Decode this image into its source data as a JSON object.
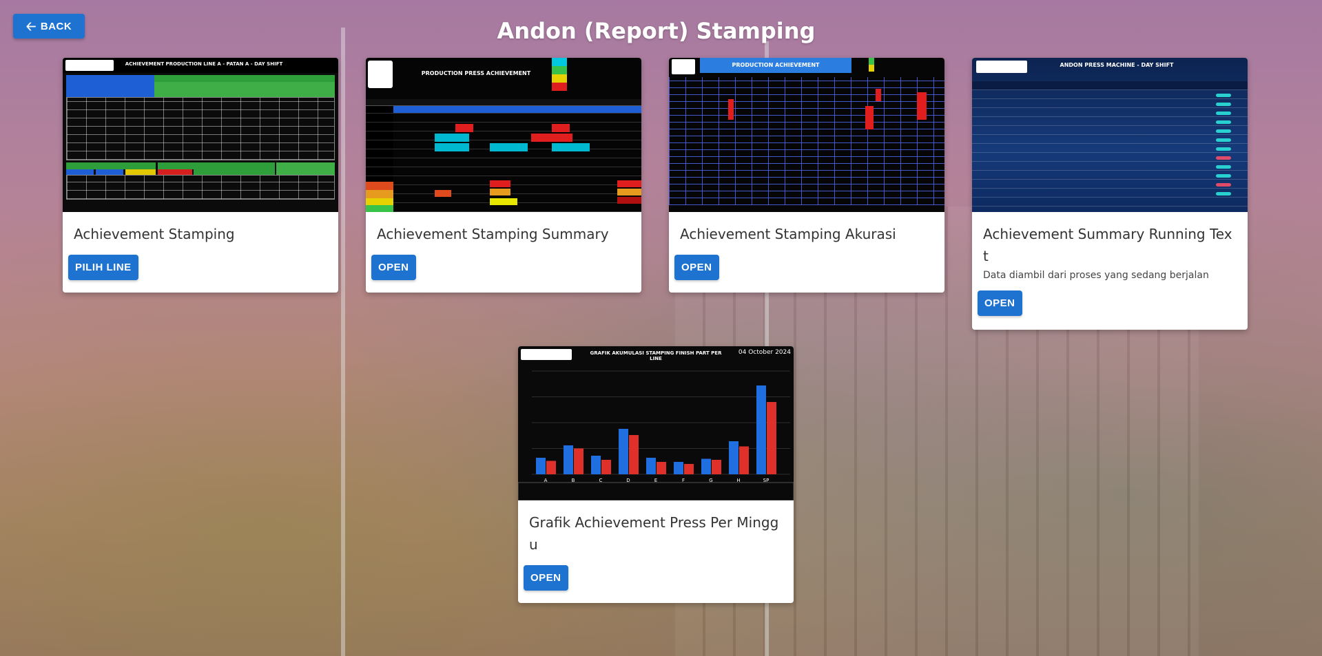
{
  "header": {
    "back_label": "BACK",
    "title": "Andon (Report) Stamping"
  },
  "cards": [
    {
      "title": "Achievement Stamping",
      "description": "",
      "button_label": "PILIH LINE",
      "thumb_heading": "ACHIEVEMENT PRODUCTION LINE A - PATAN A - DAY SHIFT"
    },
    {
      "title": "Achievement Stamping Summary",
      "description": "",
      "button_label": "OPEN",
      "thumb_heading": "PRODUCTION PRESS ACHIEVEMENT"
    },
    {
      "title": "Achievement Stamping Akurasi",
      "description": "",
      "button_label": "OPEN",
      "thumb_heading": "PRODUCTION ACHIEVEMENT"
    },
    {
      "title": "Achievement Summary Running Text",
      "description": "Data diambil dari proses yang sedang berjalan",
      "button_label": "OPEN",
      "thumb_heading": "ANDON PRESS MACHINE - DAY SHIFT"
    },
    {
      "title": "Grafik Achievement Press Per Minggu",
      "description": "",
      "button_label": "OPEN",
      "thumb_heading": "GRAFIK AKUMULASI STAMPING FINISH PART PER LINE",
      "thumb_date": "04 October 2024",
      "thumb_categories": [
        "A",
        "B",
        "C",
        "D",
        "E",
        "F",
        "G",
        "H",
        "SP"
      ]
    }
  ],
  "colors": {
    "primary": "#1e73d1",
    "card_bg": "#ffffff",
    "title": "#ffffff"
  },
  "icons": {
    "back": "arrow-left-icon"
  }
}
